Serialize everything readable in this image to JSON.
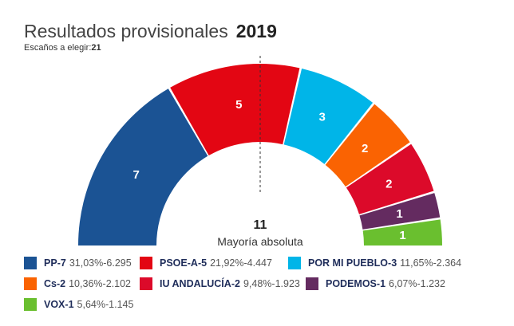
{
  "header": {
    "title": "Resultados provisionales",
    "year": "2019",
    "seats_label": "Escaños a elegir:",
    "seats_total": "21"
  },
  "majority": {
    "number": "11",
    "label": "Mayoría absoluta"
  },
  "chart_data": {
    "type": "pie",
    "subtype": "parliament-semicircle",
    "total_seats": 21,
    "majority": 11,
    "series": [
      {
        "name": "PP",
        "seats": 7,
        "pct": "31,03%",
        "votes": "6.295",
        "color": "#1b5394"
      },
      {
        "name": "PSOE-A",
        "seats": 5,
        "pct": "21,92%",
        "votes": "4.447",
        "color": "#e30613"
      },
      {
        "name": "POR MI PUEBLO",
        "seats": 3,
        "pct": "11,65%",
        "votes": "2.364",
        "color": "#00b5e8"
      },
      {
        "name": "Cs",
        "seats": 2,
        "pct": "10,36%",
        "votes": "2.102",
        "color": "#fa6302"
      },
      {
        "name": "IU ANDALUCÍA",
        "seats": 2,
        "pct": "9,48%",
        "votes": "1.923",
        "color": "#dc0a2a"
      },
      {
        "name": "PODEMOS",
        "seats": 1,
        "pct": "6,07%",
        "votes": "1.232",
        "color": "#642b60"
      },
      {
        "name": "VOX",
        "seats": 1,
        "pct": "5,64%",
        "votes": "1.145",
        "color": "#6abf2f"
      }
    ]
  }
}
